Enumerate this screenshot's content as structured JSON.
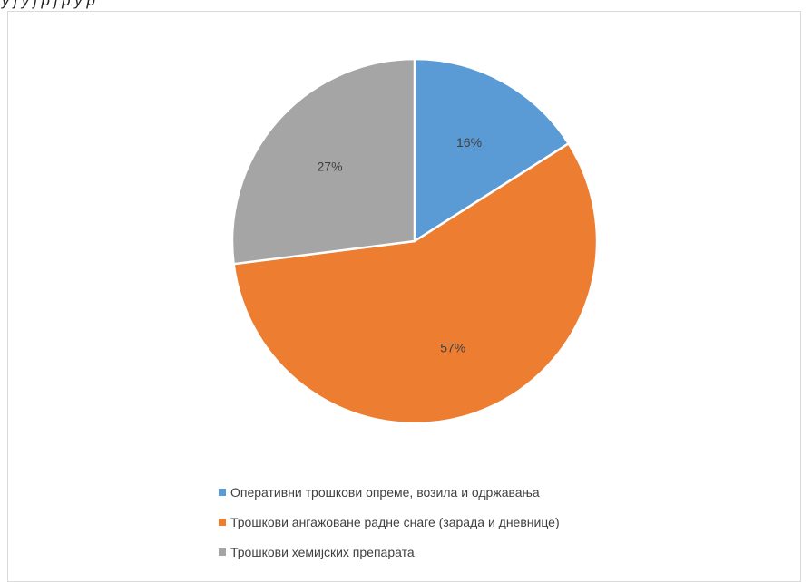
{
  "header_fragment": "у ј у ј  р ј  р у  р",
  "chart_data": {
    "type": "pie",
    "categories": [
      "Оперативни трошкови опреме, возила и одржавања",
      "Трошкови ангажоване радне снаге (зарада и дневнице)",
      "Трошкови хемијских препарата"
    ],
    "values": [
      16,
      57,
      27
    ],
    "data_labels": [
      "16%",
      "57%",
      "27%"
    ],
    "colors": [
      "#5b9bd5",
      "#ed7d31",
      "#a5a5a5"
    ],
    "legend_position": "bottom",
    "start_angle": "12 o'clock, clockwise"
  }
}
